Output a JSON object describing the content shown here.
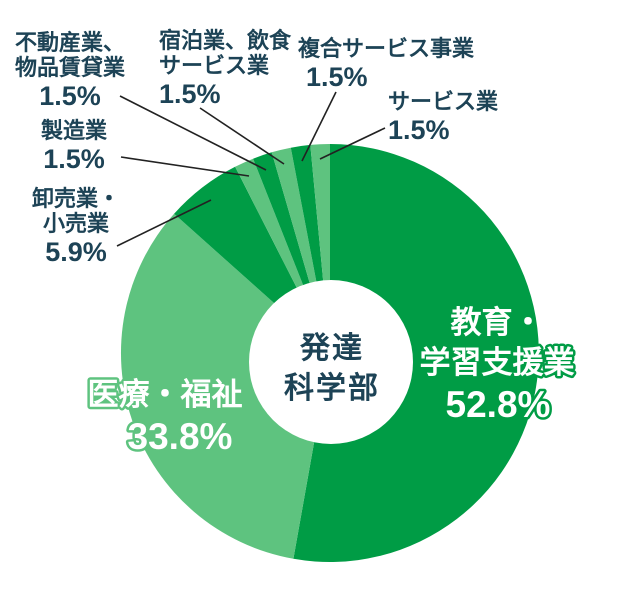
{
  "chart_data": {
    "type": "pie",
    "donut": true,
    "direction": "clockwise",
    "start_angle_deg": 0,
    "title": "",
    "center_label_lines": [
      "発達",
      "科学部"
    ],
    "slices": [
      {
        "label": "教育・学習支援業",
        "value": 52.8,
        "pct_text": "52.8%",
        "color": "#009c45"
      },
      {
        "label": "医療・福祉",
        "value": 33.8,
        "pct_text": "33.8%",
        "color": "#5ec37f"
      },
      {
        "label": "卸売業・小売業",
        "value": 5.9,
        "pct_text": "5.9%",
        "color": "#009c45"
      },
      {
        "label": "製造業",
        "value": 1.5,
        "pct_text": "1.5%",
        "color": "#5ec37f"
      },
      {
        "label": "不動産業、物品賃貸業",
        "value": 1.5,
        "pct_text": "1.5%",
        "color": "#009c45"
      },
      {
        "label": "宿泊業、飲食サービス業",
        "value": 1.5,
        "pct_text": "1.5%",
        "color": "#5ec37f"
      },
      {
        "label": "複合サービス事業",
        "value": 1.5,
        "pct_text": "1.5%",
        "color": "#009c45"
      },
      {
        "label": "サービス業",
        "value": 1.5,
        "pct_text": "1.5%",
        "color": "#5ec37f"
      }
    ]
  },
  "callouts": {
    "fudosan": {
      "line1": "不動産業、",
      "line2": "物品賃貸業",
      "pct": "1.5%"
    },
    "shukuhaku": {
      "line1": "宿泊業、飲食",
      "line2": "サービス業",
      "pct": "1.5%"
    },
    "fukugo": {
      "line1": "複合サービス事業",
      "pct": "1.5%"
    },
    "service": {
      "line1": "サービス業",
      "pct": "1.5%"
    },
    "seizo": {
      "line1": "製造業",
      "pct": "1.5%"
    },
    "oroshiuri": {
      "line1": "卸売業・",
      "line2": "小売業",
      "pct": "5.9%"
    },
    "kyoiku": {
      "line1": "教育・",
      "line2": "学習支援業",
      "pct": "52.8%"
    },
    "iryo": {
      "line1": "医療・福祉",
      "pct": "33.8%"
    }
  },
  "colors": {
    "dark_green": "#009c45",
    "light_green": "#5ec37f",
    "label_navy": "#1d4356",
    "leader_line": "#222222",
    "background": "#ffffff"
  }
}
